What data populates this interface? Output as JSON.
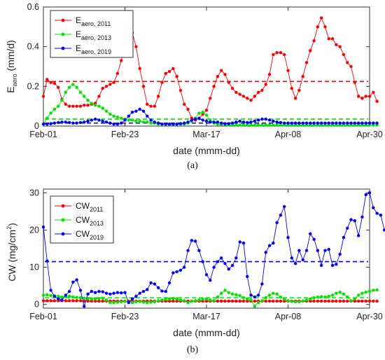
{
  "chart_data": [
    {
      "type": "line",
      "panel": "a",
      "caption": "(a)",
      "xlabel": "date (mmm-dd)",
      "ylabel": {
        "main": "E",
        "sub": "aero",
        "unit": " (mm/d)"
      },
      "xlim": [
        0,
        88
      ],
      "ylim": [
        0,
        0.6
      ],
      "yticks": [
        0,
        0.2,
        0.4,
        0.6
      ],
      "ytick_labels": [
        "0",
        "0.2",
        "0.4",
        "0.6"
      ],
      "xticks": [
        0,
        22,
        44,
        66,
        88
      ],
      "xtick_labels": [
        "Feb-01",
        "Feb-23",
        "Mar-17",
        "Apr-08",
        "Apr-30"
      ],
      "legend_position": "top-left",
      "series": [
        {
          "name": "E",
          "sub": "aero, 2011",
          "color": "#ff0000",
          "mean": 0.225,
          "values": [
            0.15,
            0.235,
            0.22,
            0.215,
            0.195,
            0.135,
            0.11,
            0.1,
            0.1,
            0.1,
            0.1,
            0.105,
            0.105,
            0.11,
            0.115,
            0.15,
            0.19,
            0.2,
            0.21,
            0.22,
            0.265,
            0.33,
            0.4,
            0.465,
            0.47,
            0.4,
            0.29,
            0.2,
            0.11,
            0.1,
            0.1,
            0.15,
            0.22,
            0.265,
            0.275,
            0.29,
            0.25,
            0.18,
            0.11,
            0.085,
            0.04,
            0.03,
            0.04,
            0.06,
            0.08,
            0.14,
            0.2,
            0.25,
            0.28,
            0.26,
            0.22,
            0.19,
            0.17,
            0.16,
            0.15,
            0.14,
            0.13,
            0.15,
            0.17,
            0.18,
            0.21,
            0.26,
            0.36,
            0.37,
            0.37,
            0.36,
            0.28,
            0.19,
            0.14,
            0.18,
            0.25,
            0.32,
            0.38,
            0.43,
            0.5,
            0.545,
            0.5,
            0.44,
            0.44,
            0.41,
            0.4,
            0.36,
            0.32,
            0.3,
            0.22,
            0.15,
            0.14,
            0.15,
            0.15,
            0.17,
            0.125
          ]
        },
        {
          "name": "E",
          "sub": "aero, 2013",
          "color": "#00e400",
          "mean": 0.035,
          "values": [
            0.01,
            0.04,
            0.065,
            0.085,
            0.1,
            0.13,
            0.17,
            0.195,
            0.21,
            0.195,
            0.17,
            0.15,
            0.13,
            0.115,
            0.105,
            0.1,
            0.09,
            0.075,
            0.06,
            0.05,
            0.045,
            0.04,
            0.035,
            0.03,
            0.03,
            0.025,
            0.025,
            0.02,
            0.02,
            0.015,
            0.015,
            0.01,
            0.01,
            0.01,
            0.008,
            0.008,
            0.008,
            0.01,
            0.01,
            0.015,
            0.025,
            0.04,
            0.065,
            0.07,
            0.055,
            0.03,
            0.015,
            0.01,
            0.008,
            0.008,
            0.005,
            0.005,
            0.005,
            0.005,
            0.005,
            0.005,
            0.005,
            0.005,
            0.005,
            0.005,
            0.005,
            0.005,
            0.005,
            0.005,
            0.005,
            0.005,
            0.005,
            0.005,
            0.005,
            0.005,
            0.005,
            0.005,
            0.005,
            0.005,
            0.005,
            0.005,
            0.005,
            0.005,
            0.005,
            0.005,
            0.005,
            0.005,
            0.005,
            0.005,
            0.005,
            0.005,
            0.005,
            0.005,
            0.005,
            0.005,
            0.005
          ]
        },
        {
          "name": "E",
          "sub": "aero, 2019",
          "color": "#0000ff",
          "mean": 0.015,
          "values": [
            0.01,
            0.01,
            0.012,
            0.015,
            0.018,
            0.02,
            0.02,
            0.018,
            0.015,
            0.015,
            0.018,
            0.02,
            0.025,
            0.03,
            0.035,
            0.03,
            0.025,
            0.02,
            0.015,
            0.01,
            0.01,
            0.015,
            0.03,
            0.05,
            0.07,
            0.075,
            0.085,
            0.075,
            0.05,
            0.03,
            0.02,
            0.015,
            0.01,
            0.01,
            0.01,
            0.01,
            0.01,
            0.012,
            0.015,
            0.02,
            0.03,
            0.035,
            0.038,
            0.03,
            0.025,
            0.02,
            0.02,
            0.02,
            0.015,
            0.012,
            0.012,
            0.015,
            0.02,
            0.025,
            0.02,
            0.018,
            0.02,
            0.025,
            0.03,
            0.035,
            0.035,
            0.03,
            0.025,
            0.02,
            0.018,
            0.015,
            0.015,
            0.015,
            0.015,
            0.015,
            0.015,
            0.015,
            0.015,
            0.015,
            0.015,
            0.015,
            0.015,
            0.015,
            0.015,
            0.015,
            0.015,
            0.015,
            0.015,
            0.015,
            0.015,
            0.015,
            0.015,
            0.015,
            0.015,
            0.015,
            0.015
          ]
        }
      ]
    },
    {
      "type": "line",
      "panel": "b",
      "caption": "(b)",
      "xlabel": "date (mmm-dd)",
      "ylabel": {
        "main": "CW (mg/cm",
        "sup": "2",
        "unit": ")"
      },
      "xlim": [
        0,
        88
      ],
      "ylim": [
        -1,
        31
      ],
      "yticks": [
        0,
        10,
        20,
        30
      ],
      "ytick_labels": [
        "0",
        "10",
        "20",
        "30"
      ],
      "xticks": [
        0,
        22,
        44,
        66,
        88
      ],
      "xtick_labels": [
        "Feb-01",
        "Feb-23",
        "Mar-17",
        "Apr-08",
        "Apr-30"
      ],
      "legend_position": "top-left",
      "series": [
        {
          "name": "CW",
          "sub": "2011",
          "color": "#ff0000",
          "mean": 0.9,
          "values": [
            1.0,
            1.0,
            1.0,
            1.0,
            1.0,
            1.0,
            1.0,
            1.0,
            1.0,
            1.0,
            1.0,
            0.9,
            0.9,
            0.9,
            0.9,
            0.9,
            0.9,
            0.9,
            0.9,
            0.9,
            0.9,
            0.9,
            0.9,
            0.9,
            0.9,
            0.9,
            0.9,
            0.9,
            0.9,
            0.9,
            0.9,
            0.9,
            0.9,
            0.9,
            0.9,
            0.9,
            0.9,
            0.9,
            0.9,
            0.9,
            0.9,
            0.9,
            0.9,
            0.9,
            0.9,
            0.9,
            0.9,
            0.9,
            0.9,
            0.9,
            0.9,
            0.9,
            0.9,
            0.9,
            0.9,
            0.9,
            0.9,
            0.9,
            0.9,
            0.9,
            0.9,
            0.9,
            0.9,
            0.9,
            0.9,
            0.9,
            0.9,
            0.9,
            0.9,
            0.9,
            0.9,
            0.9,
            0.9,
            0.9,
            0.9,
            0.9,
            0.9,
            0.9,
            0.9,
            0.9,
            0.9,
            0.9,
            0.9,
            0.9,
            0.9,
            0.9,
            0.9,
            0.9,
            0.9,
            0.9,
            0.9
          ]
        },
        {
          "name": "CW",
          "sub": "2013",
          "color": "#00e400",
          "mean": 1.8,
          "values": [
            2.5,
            2.6,
            2.4,
            2.3,
            2.2,
            2.0,
            2.1,
            2.2,
            2.0,
            1.9,
            1.8,
            1.7,
            1.6,
            1.5,
            1.5,
            1.6,
            1.7,
            1.2,
            0.5,
            0.5,
            0.6,
            0.7,
            0.8,
            0.6,
            0.5,
            0.7,
            0.8,
            0.6,
            0.5,
            0.6,
            0.7,
            1.0,
            1.2,
            1.4,
            1.5,
            1.6,
            1.5,
            1.2,
            1.0,
            0.5,
            0.8,
            1.0,
            1.2,
            1.4,
            1.5,
            1.2,
            1.0,
            2.0,
            3.0,
            3.8,
            3.2,
            2.8,
            2.6,
            2.4,
            1.8,
            1.5,
            1.2,
            -0.5,
            0.5,
            1.0,
            1.8,
            2.5,
            3.0,
            2.8,
            2.0,
            1.5,
            1.0,
            0.8,
            0.7,
            0.7,
            0.9,
            1.2,
            1.5,
            1.8,
            2.0,
            2.1,
            2.0,
            2.2,
            2.5,
            3.0,
            3.3,
            2.8,
            2.0,
            1.0,
            1.5,
            2.5,
            3.0,
            3.3,
            3.5,
            3.8,
            3.9
          ]
        },
        {
          "name": "CW",
          "sub": "2019",
          "color": "#0000ff",
          "mean": 11.5,
          "values": [
            20.8,
            11.7,
            3.8,
            2.2,
            1.5,
            1.2,
            2.5,
            3.5,
            6.0,
            6.6,
            3.8,
            -0.5,
            2.8,
            3.5,
            3.2,
            3.5,
            3.4,
            3.0,
            2.8,
            3.0,
            3.2,
            3.1,
            3.2,
            0.5,
            1.5,
            2.2,
            3.0,
            3.5,
            4.0,
            5.8,
            5.5,
            4.5,
            3.6,
            3.5,
            5.8,
            8.5,
            8.8,
            9.2,
            10.0,
            14.5,
            17.2,
            17.0,
            14.5,
            11.5,
            8.0,
            6.5,
            10.0,
            11.5,
            12.5,
            11.0,
            9.5,
            10.5,
            12.5,
            16.8,
            16.5,
            7.5,
            2.5,
            2.0,
            2.5,
            5.5,
            14.0,
            15.8,
            16.5,
            22.0,
            24.0,
            26.3,
            18.0,
            12.5,
            11.0,
            14.5,
            12.0,
            14.5,
            19.0,
            17.5,
            14.5,
            10.5,
            14.5,
            14.8,
            10.5,
            10.8,
            13.5,
            18.0,
            20.5,
            22.8,
            22.5,
            18.5,
            23.5,
            29.5,
            30.0,
            26.0,
            24.5,
            24.0,
            20.0,
            19.2,
            19.0
          ]
        }
      ]
    }
  ]
}
